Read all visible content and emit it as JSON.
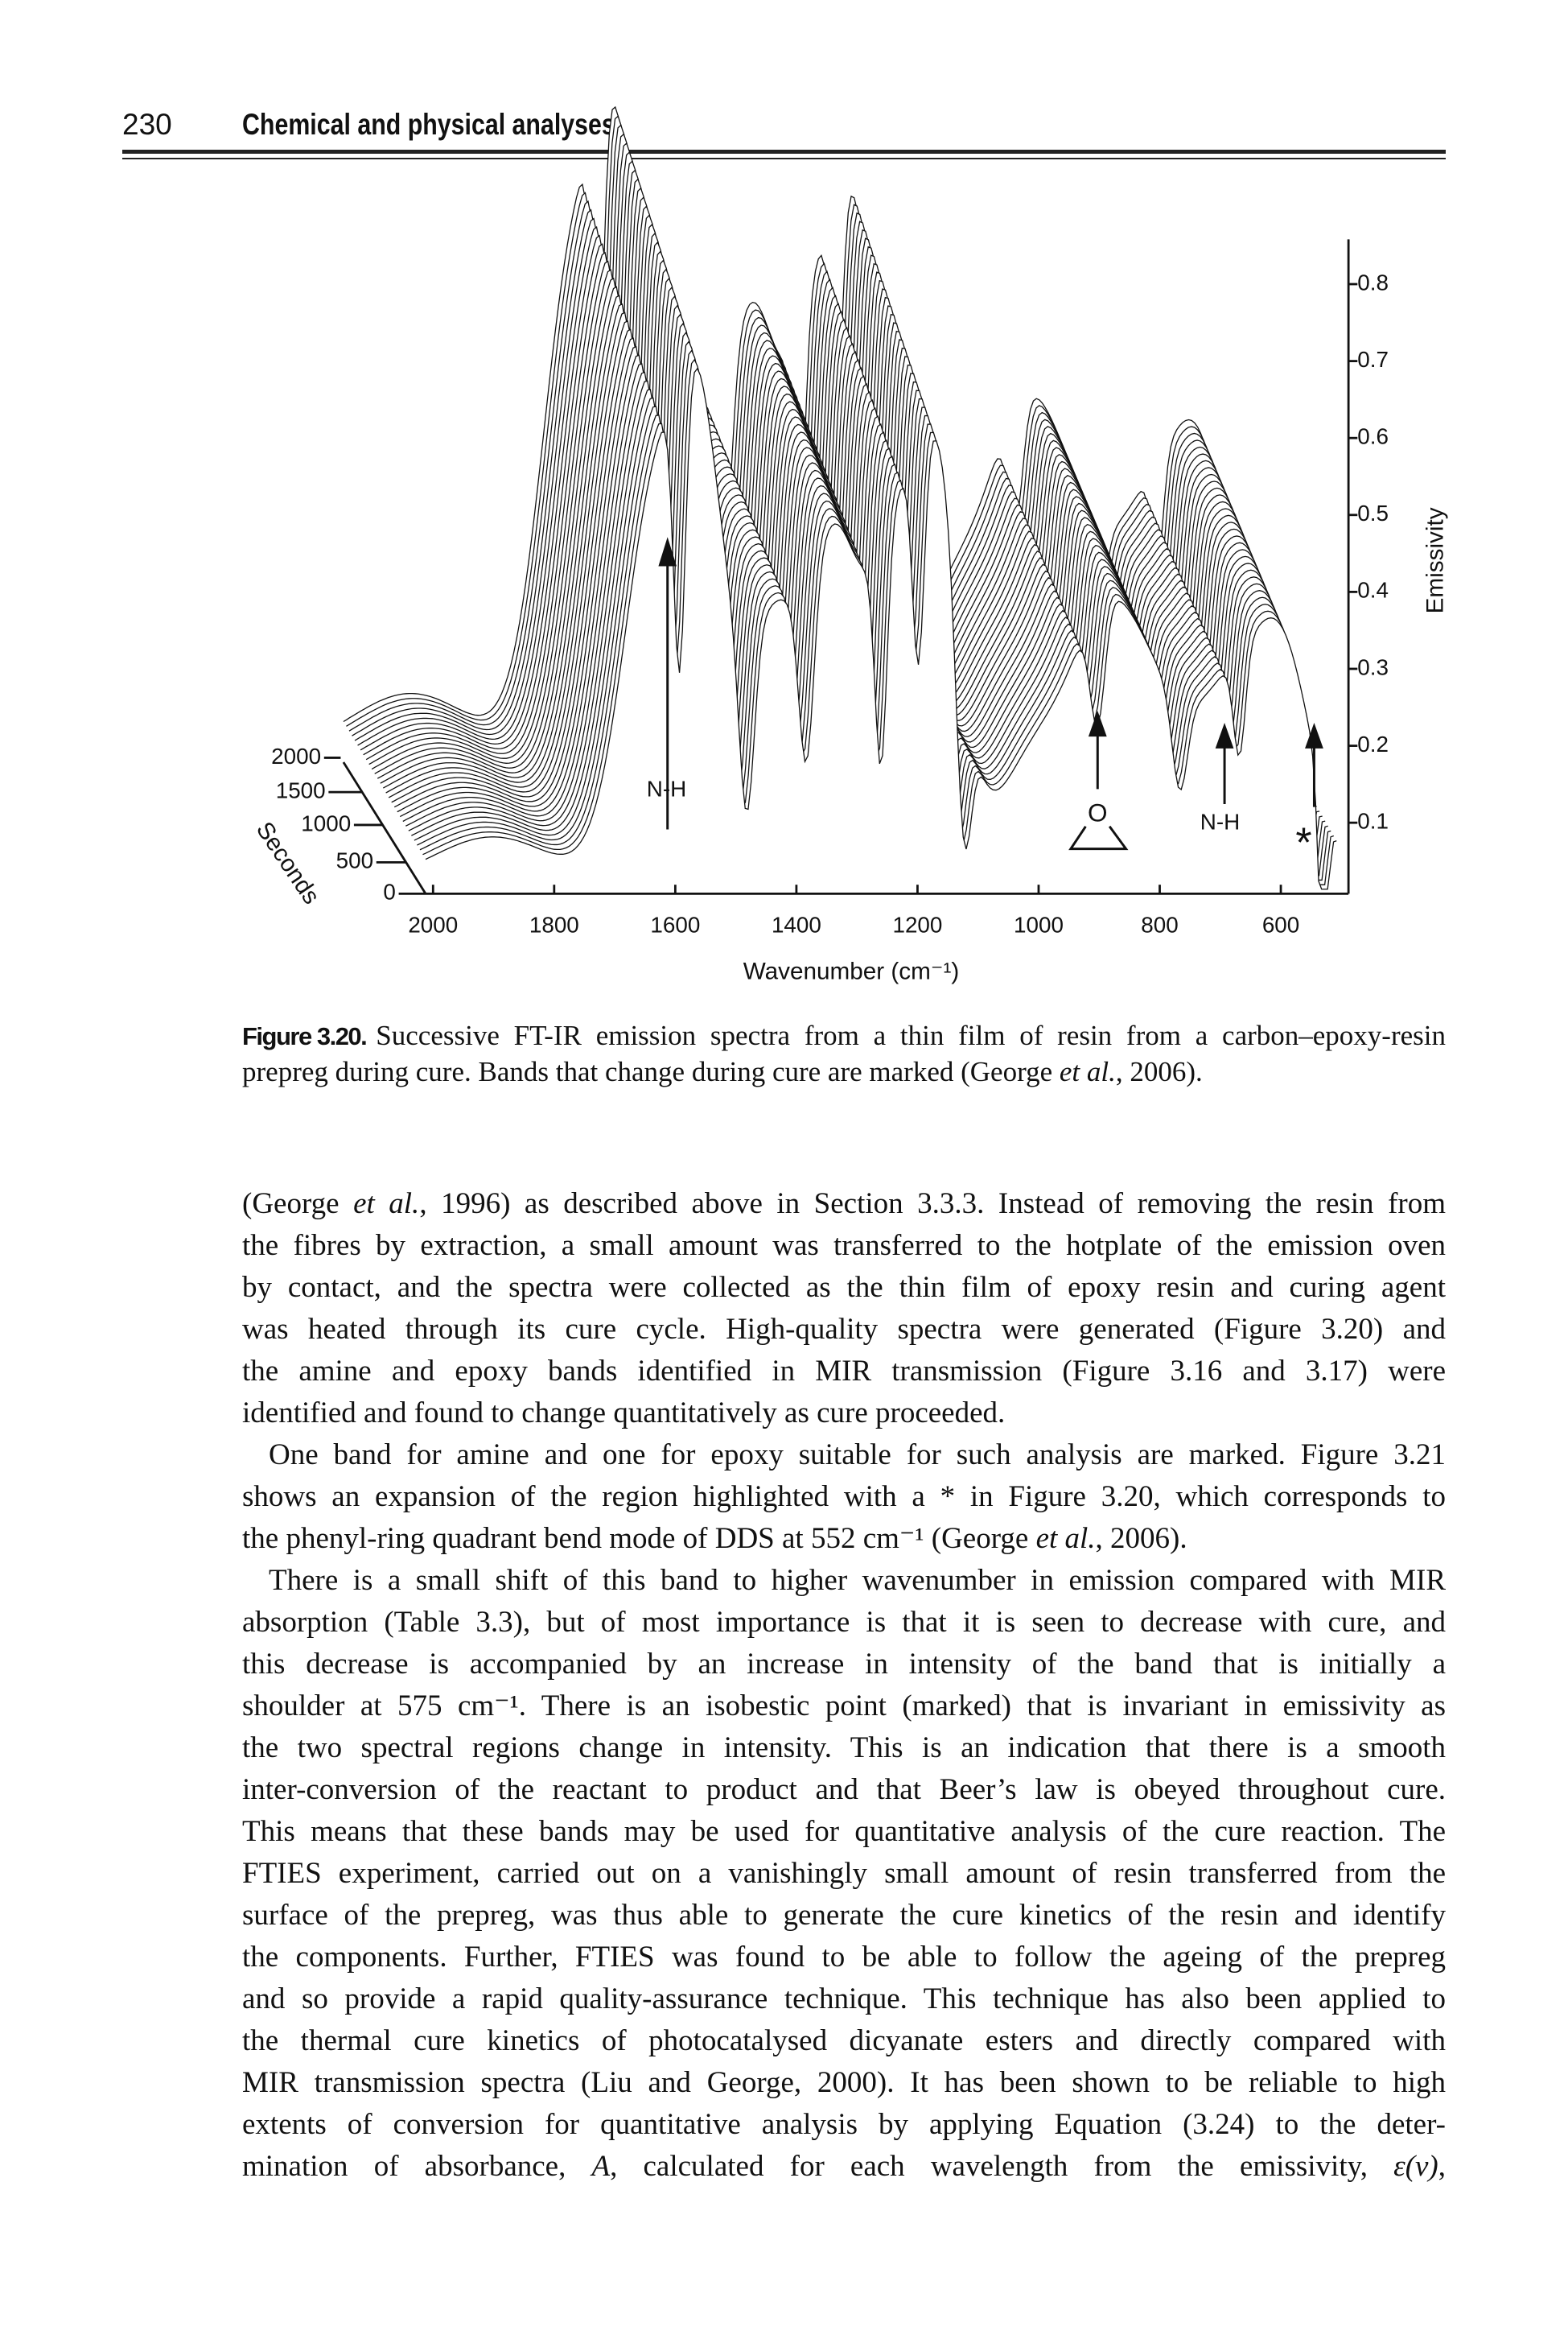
{
  "header": {
    "page_number": "230",
    "title": "Chemical and physical analyses"
  },
  "figure": {
    "x_axis": {
      "label": "Wavenumber (cm⁻¹)",
      "ticks": [
        "2000",
        "1800",
        "1600",
        "1400",
        "1200",
        "1000",
        "800",
        "600"
      ]
    },
    "y_axis": {
      "label": "Emissivity",
      "ticks": [
        "0.8",
        "0.7",
        "0.6",
        "0.5",
        "0.4",
        "0.3",
        "0.2",
        "0.1"
      ]
    },
    "z_axis": {
      "label": "Seconds",
      "ticks": [
        "2000",
        "1500",
        "1000",
        "500",
        "0"
      ]
    },
    "annotations": {
      "amine_left": "N-H",
      "epoxide": "O",
      "amine_right": "N-H",
      "marked": "*"
    }
  },
  "caption": {
    "label": "Figure 3.20.",
    "lines": [
      "Successive FT-IR emission spectra from a thin film of resin from a carbon–epoxy-resin",
      [
        {
          "t": "prepreg during cure. Bands that change during cure are marked (George "
        },
        {
          "t": "et al.",
          "i": true
        },
        {
          "t": ", 2006)."
        }
      ]
    ]
  },
  "body": {
    "paragraphs": [
      [
        [
          {
            "t": "(George "
          },
          {
            "t": "et al.",
            "i": true
          },
          {
            "t": ", 1996) as described above in Section 3.3.3. Instead of removing the resin from"
          }
        ],
        "the fibres by extraction, a small amount was transferred to the hotplate of the emission oven",
        "by contact, and the spectra were collected as the thin film of epoxy resin and curing agent",
        "was heated through its cure cycle. High-quality spectra were generated (Figure 3.20) and",
        "the amine and epoxy bands identified in MIR transmission (Figure 3.16 and 3.17) were",
        "identified and found to change quantitatively as cure proceeded."
      ],
      [
        "One band for amine and one for epoxy suitable for such analysis are marked. Figure 3.21",
        "shows an expansion of the region highlighted with a * in Figure 3.20, which corresponds to",
        [
          {
            "t": "the phenyl-ring quadrant bend mode of DDS at 552 cm⁻¹ (George "
          },
          {
            "t": "et al.",
            "i": true
          },
          {
            "t": ", 2006)."
          }
        ]
      ],
      [
        "There is a small shift of this band to higher wavenumber in emission compared with MIR",
        "absorption (Table 3.3), but of most importance is that it is seen to decrease with cure, and",
        "this decrease is accompanied by an increase in intensity of the band that is initially a",
        "shoulder at 575 cm⁻¹. There is an isobestic point (marked) that is invariant in emissivity as",
        "the two spectral regions change in intensity. This is an indication that there is a smooth",
        "inter-conversion of the reactant to product and that Beer’s law is obeyed throughout cure.",
        "This means that these bands may be used for quantitative analysis of the cure reaction. The",
        "FTIES experiment, carried out on a vanishingly small amount of resin transferred from the",
        "surface of the prepreg, was thus able to generate the cure kinetics of the resin and identify",
        "the components. Further, FTIES was found to be able to follow the ageing of the prepreg",
        "and so provide a rapid quality-assurance technique. This technique has also been applied to",
        "the thermal cure kinetics of photocatalysed dicyanate esters and directly compared with",
        "MIR transmission spectra (Liu and George, 2000). It has been shown to be reliable to high",
        "extents of conversion for quantitative analysis by applying Equation (3.24) to the deter-",
        [
          {
            "t": "mination of absorbance, "
          },
          {
            "t": "A",
            "i": true
          },
          {
            "t": ", calculated for each wavelength from the emissivity, "
          },
          {
            "t": "ε(ν)",
            "i": true
          },
          {
            "t": ","
          }
        ]
      ]
    ]
  }
}
